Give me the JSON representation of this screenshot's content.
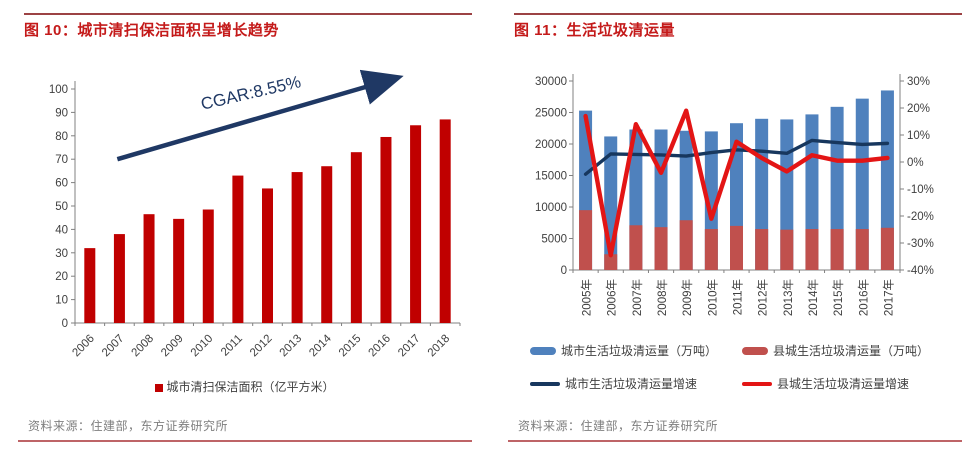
{
  "colors": {
    "title_red": "#C41A1A",
    "top_rule": "#9C4244",
    "bottom_rule": "#BE6467",
    "axis_line": "#808080",
    "tick_text": "#404040",
    "source_text": "#7F7F7F",
    "annotation_navy": "#1F3864"
  },
  "left_panel": {
    "source": "资料来源：住建部，东方证券研究所"
  },
  "right_panel": {
    "source": "资料来源：住建部，东方证券研究所"
  },
  "chart_data": [
    {
      "type": "bar",
      "title": "图 10：城市清扫保洁面积呈增长趋势",
      "categories": [
        "2006",
        "2007",
        "2008",
        "2009",
        "2010",
        "2011",
        "2012",
        "2013",
        "2014",
        "2015",
        "2016",
        "2017",
        "2018"
      ],
      "values": [
        32,
        38,
        46.5,
        44.5,
        48.5,
        63,
        57.5,
        64.5,
        67,
        73,
        79.5,
        84.5,
        87
      ],
      "series_label": "城市清扫保洁面积（亿平方米）",
      "bar_color": "#C00000",
      "ylim": [
        0,
        100
      ],
      "ytick_step": 10,
      "grid": false,
      "legend_position": "bottom",
      "annotation": {
        "text": "CGAR:8.55%",
        "x_frac": 0.46,
        "y_val": 96,
        "rotation_deg": -13
      },
      "trend_arrow": {
        "x1_frac": 0.11,
        "y1_val": 70,
        "x2_frac": 0.82,
        "y2_val": 104
      }
    },
    {
      "type": "bar",
      "title": "图 11：生活垃圾清运量",
      "categories": [
        "2005年",
        "2006年",
        "2007年",
        "2008年",
        "2009年",
        "2010年",
        "2011年",
        "2012年",
        "2013年",
        "2014年",
        "2015年",
        "2016年",
        "2017年"
      ],
      "bar_style": "overlaid",
      "grid": false,
      "legend_position": "bottom",
      "left_ylim": [
        0,
        30000
      ],
      "left_ytick_step": 5000,
      "right_ylim": [
        -40,
        30
      ],
      "right_ytick_step": 10,
      "right_tick_suffix": "%",
      "series": [
        {
          "name": "城市生活垃圾清运量（万吨）",
          "kind": "bar",
          "axis": "left",
          "color": "#4F81BD",
          "values": [
            25300,
            21200,
            22300,
            22300,
            22100,
            22000,
            23300,
            24000,
            23900,
            24700,
            25900,
            27200,
            28500
          ]
        },
        {
          "name": "县城生活垃圾清运量（万吨）",
          "kind": "bar",
          "axis": "left",
          "color": "#C0504D",
          "values": [
            9500,
            2500,
            7100,
            6800,
            7900,
            6500,
            7000,
            6500,
            6400,
            6500,
            6500,
            6500,
            6700
          ]
        },
        {
          "name": "城市生活垃圾清运量增速",
          "kind": "line",
          "axis": "right",
          "color": "#17375E",
          "values": [
            -4.5,
            3,
            2.8,
            2.6,
            2.2,
            3.5,
            4.5,
            4,
            3.2,
            8,
            7.2,
            6.5,
            6.9
          ]
        },
        {
          "name": "县城生活垃圾清运量增速",
          "kind": "line",
          "axis": "right",
          "color": "#E31515",
          "values": [
            17,
            -34.5,
            14,
            -4,
            19,
            -21,
            7.5,
            1.5,
            -3.5,
            2.5,
            0.5,
            0.5,
            1.5
          ]
        }
      ]
    }
  ]
}
